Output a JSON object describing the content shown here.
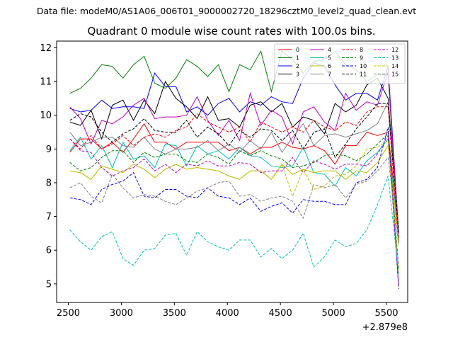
{
  "chart_data": {
    "type": "line",
    "suptitle": "Data file: modeM0/AS1A06_006T01_9000002720_18296cztM0_level2_quad_clean.evt",
    "title": "Quadrant 0 module wise count rates with 100.0s bins.",
    "xlabel": "",
    "ylabel": "",
    "x_offset_label": "+2.879e8",
    "xlim": [
      2390,
      5700
    ],
    "ylim": [
      4.45,
      12.2
    ],
    "xticks": [
      2500,
      3000,
      3500,
      4000,
      4500,
      5000,
      5500
    ],
    "yticks": [
      5,
      6,
      7,
      8,
      9,
      10,
      11,
      12
    ],
    "legend_position": "top-right",
    "x": [
      2515,
      2615,
      2715,
      2815,
      2915,
      3015,
      3115,
      3215,
      3315,
      3415,
      3515,
      3615,
      3715,
      3815,
      3915,
      4015,
      4115,
      4215,
      4315,
      4415,
      4515,
      4615,
      4715,
      4815,
      4915,
      5015,
      5115,
      5215,
      5315,
      5415,
      5515,
      5615
    ],
    "series": [
      {
        "name": "0",
        "color": "#ff0000",
        "dash": "solid",
        "values": [
          8.9,
          9.3,
          9.3,
          9.0,
          9.2,
          8.9,
          9.3,
          9.75,
          9.2,
          9.2,
          9.0,
          9.2,
          9.2,
          9.2,
          9.2,
          8.95,
          9.05,
          8.85,
          9.05,
          9.05,
          9.2,
          9.05,
          9.0,
          9.1,
          8.95,
          8.55,
          9.1,
          9.1,
          9.5,
          9.4,
          9.5,
          6.5
        ]
      },
      {
        "name": "1",
        "color": "#008000",
        "dash": "solid",
        "values": [
          10.65,
          10.8,
          11.1,
          11.5,
          11.45,
          11.1,
          11.5,
          11.75,
          10.95,
          10.8,
          11.1,
          11.65,
          11.45,
          11.15,
          11.5,
          10.7,
          11.5,
          11.35,
          11.9,
          10.7,
          11.9,
          11.65,
          11.25,
          11.6,
          11.65,
          11.9,
          11.5,
          11.35,
          11.0,
          11.2,
          11.2,
          6.3
        ]
      },
      {
        "name": "2",
        "color": "#0000ff",
        "dash": "solid",
        "values": [
          10.2,
          10.1,
          10.15,
          10.45,
          10.2,
          10.25,
          10.25,
          10.2,
          11.25,
          10.85,
          10.85,
          10.1,
          10.25,
          10.0,
          10.35,
          10.5,
          10.1,
          10.4,
          10.3,
          10.55,
          10.4,
          10.35,
          11.1,
          11.55,
          11.45,
          10.9,
          10.45,
          10.65,
          10.65,
          10.45,
          11.45,
          6.5
        ]
      },
      {
        "name": "3",
        "color": "#000000",
        "dash": "solid",
        "values": [
          9.8,
          9.7,
          10.15,
          9.3,
          10.3,
          10.45,
          9.85,
          10.45,
          10.05,
          11.0,
          10.5,
          10.25,
          9.9,
          10.55,
          9.85,
          9.9,
          9.65,
          10.3,
          10.4,
          10.1,
          10.35,
          9.65,
          9.95,
          9.85,
          9.45,
          10.35,
          10.1,
          10.3,
          10.9,
          11.1,
          10.5,
          6.6
        ]
      },
      {
        "name": "4",
        "color": "#bf00bf",
        "dash": "solid",
        "values": [
          10.25,
          9.9,
          9.15,
          9.85,
          9.75,
          9.95,
          10.3,
          10.5,
          9.9,
          9.95,
          9.95,
          10.0,
          10.55,
          9.85,
          9.4,
          9.85,
          9.25,
          10.65,
          9.7,
          10.15,
          9.95,
          9.15,
          10.1,
          10.25,
          9.8,
          9.55,
          10.65,
          10.15,
          10.4,
          10.3,
          11.3,
          6.4
        ]
      },
      {
        "name": "5",
        "color": "#00bfbf",
        "dash": "solid",
        "values": [
          8.95,
          9.35,
          8.7,
          9.1,
          8.45,
          9.2,
          8.7,
          8.8,
          8.45,
          9.15,
          9.1,
          8.5,
          9.1,
          8.85,
          8.95,
          8.7,
          9.05,
          8.8,
          8.75,
          8.5,
          8.45,
          8.5,
          9.05,
          8.3,
          8.25,
          7.9,
          8.45,
          8.2,
          8.65,
          8.9,
          9.3,
          6.35
        ]
      },
      {
        "name": "6",
        "color": "#bfbf00",
        "dash": "solid",
        "values": [
          8.35,
          8.3,
          8.1,
          8.5,
          8.4,
          8.3,
          8.55,
          8.4,
          8.15,
          8.4,
          8.55,
          8.4,
          8.45,
          8.4,
          8.35,
          8.2,
          8.1,
          8.35,
          8.35,
          8.1,
          8.55,
          8.25,
          8.4,
          8.3,
          8.35,
          8.35,
          8.1,
          8.35,
          8.3,
          8.6,
          9.1,
          6.3
        ]
      },
      {
        "name": "7",
        "color": "#808080",
        "dash": "solid",
        "values": [
          9.5,
          9.1,
          9.2,
          9.35,
          9.35,
          9.1,
          9.05,
          9.35,
          9.0,
          8.85,
          9.0,
          9.0,
          9.05,
          9.25,
          8.95,
          9.15,
          8.9,
          9.25,
          9.0,
          9.5,
          8.9,
          9.35,
          9.75,
          9.1,
          9.4,
          9.45,
          9.35,
          9.45,
          9.55,
          9.75,
          10.4,
          6.6
        ]
      },
      {
        "name": "8",
        "color": "#ff0000",
        "dash": "dashed",
        "values": [
          9.3,
          9.0,
          9.4,
          9.0,
          9.15,
          9.4,
          9.1,
          9.35,
          9.45,
          9.35,
          9.55,
          9.65,
          10.05,
          9.8,
          9.65,
          9.5,
          9.65,
          9.2,
          9.8,
          9.65,
          9.5,
          9.65,
          9.5,
          9.85,
          9.65,
          9.55,
          9.8,
          9.7,
          10.1,
          10.25,
          10.25,
          6.2
        ]
      },
      {
        "name": "9",
        "color": "#008000",
        "dash": "dashed",
        "values": [
          8.6,
          8.35,
          8.45,
          8.75,
          8.95,
          8.95,
          8.6,
          8.9,
          8.75,
          8.85,
          8.85,
          8.65,
          8.6,
          8.85,
          8.75,
          8.55,
          8.95,
          8.8,
          8.95,
          8.8,
          8.7,
          8.45,
          8.5,
          8.6,
          8.8,
          8.85,
          8.8,
          8.65,
          8.85,
          9.15,
          9.45,
          5.45
        ]
      },
      {
        "name": "10",
        "color": "#0000ff",
        "dash": "dashed",
        "values": [
          7.55,
          7.5,
          7.35,
          7.8,
          7.95,
          8.05,
          8.3,
          7.6,
          7.55,
          7.8,
          7.8,
          7.6,
          7.55,
          7.85,
          7.6,
          7.55,
          7.35,
          7.55,
          7.15,
          7.3,
          7.4,
          7.1,
          7.5,
          7.45,
          7.45,
          7.35,
          7.35,
          8.0,
          8.1,
          8.45,
          9.65,
          4.85
        ]
      },
      {
        "name": "11",
        "color": "#000000",
        "dash": "dashed",
        "values": [
          9.85,
          10.05,
          9.95,
          9.5,
          9.2,
          9.45,
          9.6,
          9.9,
          9.55,
          9.5,
          9.5,
          9.85,
          9.35,
          9.65,
          9.45,
          9.1,
          9.55,
          9.35,
          9.6,
          9.55,
          9.25,
          9.55,
          9.0,
          9.5,
          9.6,
          8.75,
          9.15,
          9.6,
          9.95,
          10.35,
          10.35,
          6.55
        ]
      },
      {
        "name": "12",
        "color": "#bf00bf",
        "dash": "dashed",
        "values": [
          9.3,
          8.95,
          8.9,
          8.45,
          8.2,
          8.35,
          8.45,
          8.7,
          8.35,
          8.55,
          8.3,
          8.55,
          8.5,
          8.65,
          8.5,
          8.5,
          8.6,
          8.55,
          8.3,
          8.35,
          8.35,
          8.75,
          8.3,
          8.65,
          8.55,
          8.4,
          8.55,
          8.55,
          8.5,
          8.85,
          9.4,
          4.95
        ]
      },
      {
        "name": "13",
        "color": "#00bfbf",
        "dash": "dashed",
        "values": [
          6.6,
          6.25,
          6.0,
          6.4,
          6.55,
          5.75,
          5.55,
          6.0,
          6.05,
          6.45,
          6.5,
          5.85,
          6.55,
          6.25,
          6.1,
          6.0,
          6.3,
          6.3,
          5.8,
          6.05,
          5.75,
          6.0,
          6.5,
          5.5,
          5.8,
          6.3,
          6.1,
          6.2,
          6.6,
          7.35,
          8.2,
          5.3
        ]
      },
      {
        "name": "14",
        "color": "#bfbf00",
        "dash": "dashed",
        "values": [
          8.35,
          8.3,
          8.1,
          8.5,
          8.4,
          8.3,
          8.55,
          8.4,
          8.15,
          8.4,
          8.55,
          8.4,
          8.45,
          8.4,
          8.35,
          8.2,
          8.1,
          8.35,
          8.35,
          8.1,
          8.55,
          7.6,
          8.4,
          7.8,
          7.9,
          8.2,
          8.25,
          8.5,
          9.0,
          9.05,
          9.25,
          5.35
        ]
      },
      {
        "name": "15",
        "color": "#808080",
        "dash": "dashed",
        "values": [
          7.85,
          8.0,
          7.6,
          7.4,
          8.25,
          7.85,
          7.55,
          7.65,
          7.6,
          7.45,
          7.35,
          7.55,
          7.75,
          7.85,
          8.0,
          8.05,
          7.6,
          7.65,
          7.45,
          7.55,
          7.6,
          7.45,
          6.95,
          7.95,
          7.85,
          7.95,
          7.55,
          7.95,
          8.05,
          8.35,
          8.75,
          6.15
        ]
      }
    ]
  }
}
